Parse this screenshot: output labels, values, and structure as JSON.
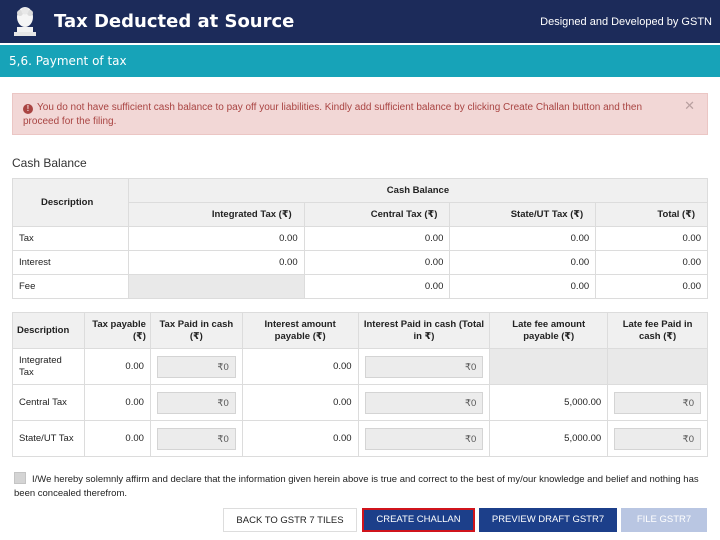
{
  "header": {
    "title": "Tax Deducted at Source",
    "credit": "Designed and Developed by GSTN"
  },
  "section": {
    "title": "5,6. Payment of tax"
  },
  "alert": {
    "message": "You do not have sufficient cash balance to pay off your liabilities. Kindly add sufficient balance by clicking Create Challan button and then proceed for the filing.",
    "close": "✕"
  },
  "cash_balance": {
    "heading": "Cash Balance",
    "col_description": "Description",
    "col_group": "Cash Balance",
    "subcols": [
      "Integrated Tax (₹)",
      "Central Tax (₹)",
      "State/UT Tax (₹)",
      "Total (₹)"
    ],
    "rows": [
      {
        "label": "Tax",
        "values": [
          "0.00",
          "0.00",
          "0.00",
          "0.00"
        ]
      },
      {
        "label": "Interest",
        "values": [
          "0.00",
          "0.00",
          "0.00",
          "0.00"
        ]
      },
      {
        "label": "Fee",
        "values": [
          "",
          "0.00",
          "0.00",
          "0.00"
        ]
      }
    ]
  },
  "payment": {
    "headers": [
      "Description",
      "Tax payable (₹)",
      "Tax Paid in cash (₹)",
      "Interest amount payable (₹)",
      "Interest Paid in cash (Total in ₹)",
      "Late fee amount payable (₹)",
      "Late fee Paid in cash (₹)"
    ],
    "rows": [
      {
        "label": "Integrated Tax",
        "tax_payable": "0.00",
        "tax_paid": "₹0",
        "interest_payable": "0.00",
        "interest_paid": "₹0",
        "late_fee_payable": "",
        "late_fee_paid": ""
      },
      {
        "label": "Central Tax",
        "tax_payable": "0.00",
        "tax_paid": "₹0",
        "interest_payable": "0.00",
        "interest_paid": "₹0",
        "late_fee_payable": "5,000.00",
        "late_fee_paid": "₹0"
      },
      {
        "label": "State/UT Tax",
        "tax_payable": "0.00",
        "tax_paid": "₹0",
        "interest_payable": "0.00",
        "interest_paid": "₹0",
        "late_fee_payable": "5,000.00",
        "late_fee_paid": "₹0"
      }
    ]
  },
  "declaration": {
    "text": "I/We hereby solemnly affirm and declare that the information given herein above is true and correct to the best of my/our knowledge and belief and nothing has been concealed therefrom."
  },
  "buttons": {
    "back": "BACK TO GSTR 7 TILES",
    "create_challan": "CREATE CHALLAN",
    "preview": "PREVIEW DRAFT GSTR7",
    "file": "FILE GSTR7"
  },
  "colors": {
    "header_bg": "#1c2b5a",
    "section_bg": "#17a3b8",
    "alert_bg": "#f2d7d6",
    "alert_text": "#a94442",
    "primary_button": "#1c3f8a",
    "highlight_border": "#d0141c"
  }
}
